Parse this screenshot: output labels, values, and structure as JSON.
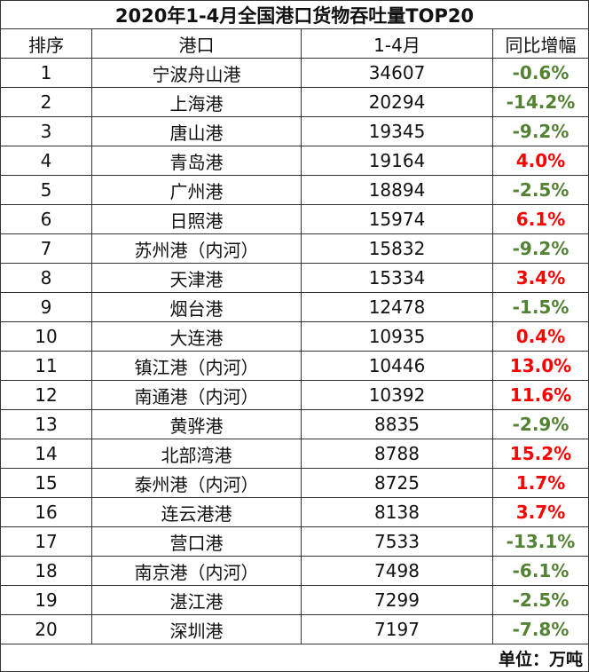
{
  "title": "2020年1-4月全国港口货物吞吐量TOP20",
  "headers": {
    "rank": "排序",
    "port": "港口",
    "period": "1-4月",
    "yoy": "同比增幅"
  },
  "unit": "单位：万吨",
  "colors": {
    "negative": "#548235",
    "positive": "#ff0000",
    "border": "#333333"
  },
  "rows": [
    {
      "rank": "1",
      "port": "宁波舟山港",
      "value": "34607",
      "change": "-0.6%",
      "trend": "neg"
    },
    {
      "rank": "2",
      "port": "上海港",
      "value": "20294",
      "change": "-14.2%",
      "trend": "neg"
    },
    {
      "rank": "3",
      "port": "唐山港",
      "value": "19345",
      "change": "-9.2%",
      "trend": "neg"
    },
    {
      "rank": "4",
      "port": "青岛港",
      "value": "19164",
      "change": "4.0%",
      "trend": "pos"
    },
    {
      "rank": "5",
      "port": "广州港",
      "value": "18894",
      "change": "-2.5%",
      "trend": "neg"
    },
    {
      "rank": "6",
      "port": "日照港",
      "value": "15974",
      "change": "6.1%",
      "trend": "pos"
    },
    {
      "rank": "7",
      "port": "苏州港（内河）",
      "value": "15832",
      "change": "-9.2%",
      "trend": "neg"
    },
    {
      "rank": "8",
      "port": "天津港",
      "value": "15334",
      "change": "3.4%",
      "trend": "pos"
    },
    {
      "rank": "9",
      "port": "烟台港",
      "value": "12478",
      "change": "-1.5%",
      "trend": "neg"
    },
    {
      "rank": "10",
      "port": "大连港",
      "value": "10935",
      "change": "0.4%",
      "trend": "pos"
    },
    {
      "rank": "11",
      "port": "镇江港（内河）",
      "value": "10446",
      "change": "13.0%",
      "trend": "pos"
    },
    {
      "rank": "12",
      "port": "南通港（内河）",
      "value": "10392",
      "change": "11.6%",
      "trend": "pos"
    },
    {
      "rank": "13",
      "port": "黄骅港",
      "value": "8835",
      "change": "-2.9%",
      "trend": "neg"
    },
    {
      "rank": "14",
      "port": "北部湾港",
      "value": "8788",
      "change": "15.2%",
      "trend": "pos"
    },
    {
      "rank": "15",
      "port": "泰州港（内河）",
      "value": "8725",
      "change": "1.7%",
      "trend": "pos"
    },
    {
      "rank": "16",
      "port": "连云港港",
      "value": "8138",
      "change": "3.7%",
      "trend": "pos"
    },
    {
      "rank": "17",
      "port": "营口港",
      "value": "7533",
      "change": "-13.1%",
      "trend": "neg"
    },
    {
      "rank": "18",
      "port": "南京港（内河）",
      "value": "7498",
      "change": "-6.1%",
      "trend": "neg"
    },
    {
      "rank": "19",
      "port": "湛江港",
      "value": "7299",
      "change": "-2.5%",
      "trend": "neg"
    },
    {
      "rank": "20",
      "port": "深圳港",
      "value": "7197",
      "change": "-7.8%",
      "trend": "neg"
    }
  ]
}
